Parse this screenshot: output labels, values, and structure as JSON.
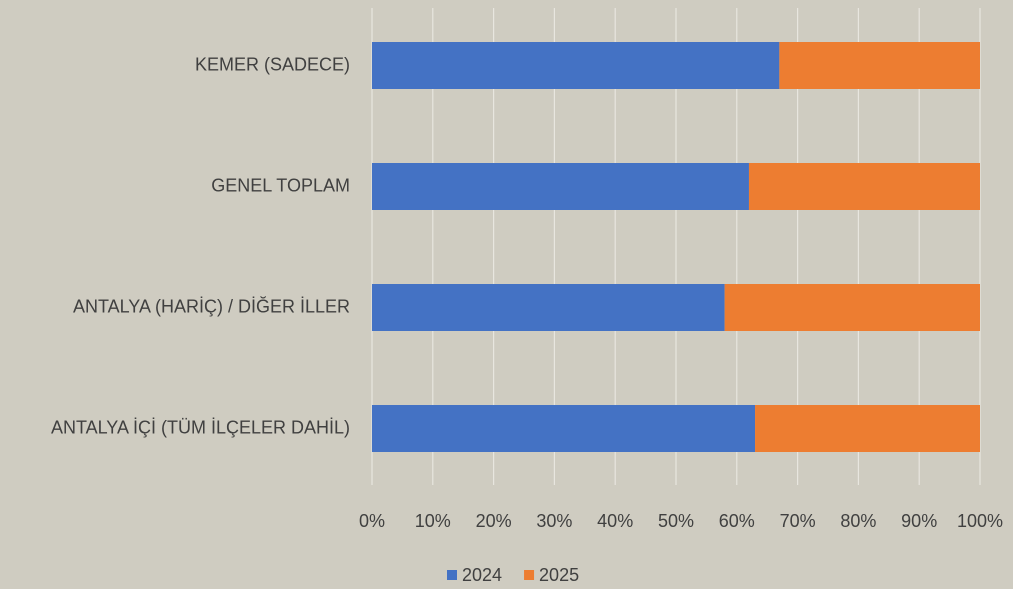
{
  "chart_data": {
    "type": "stacked_barh",
    "categories": [
      "KEMER (SADECE)",
      "GENEL TOPLAM",
      "ANTALYA (HARİÇ) / DİĞER İLLER",
      "ANTALYA İÇİ (TÜM İLÇELER DAHİL)"
    ],
    "series": [
      {
        "name": "2024",
        "color": "#4472c4",
        "values": [
          67,
          62,
          58,
          63
        ]
      },
      {
        "name": "2025",
        "color": "#ed7d31",
        "values": [
          33,
          38,
          42,
          37
        ]
      }
    ],
    "xlim": [
      0,
      100
    ],
    "xticks": [
      {
        "value": 0,
        "label": "0%"
      },
      {
        "value": 10,
        "label": "10%"
      },
      {
        "value": 20,
        "label": "20%"
      },
      {
        "value": 30,
        "label": "30%"
      },
      {
        "value": 40,
        "label": "40%"
      },
      {
        "value": 50,
        "label": "50%"
      },
      {
        "value": 60,
        "label": "60%"
      },
      {
        "value": 70,
        "label": "70%"
      },
      {
        "value": 80,
        "label": "80%"
      },
      {
        "value": 90,
        "label": "90%"
      },
      {
        "value": 100,
        "label": "100%"
      }
    ],
    "grid": true,
    "legend": "bottom"
  }
}
